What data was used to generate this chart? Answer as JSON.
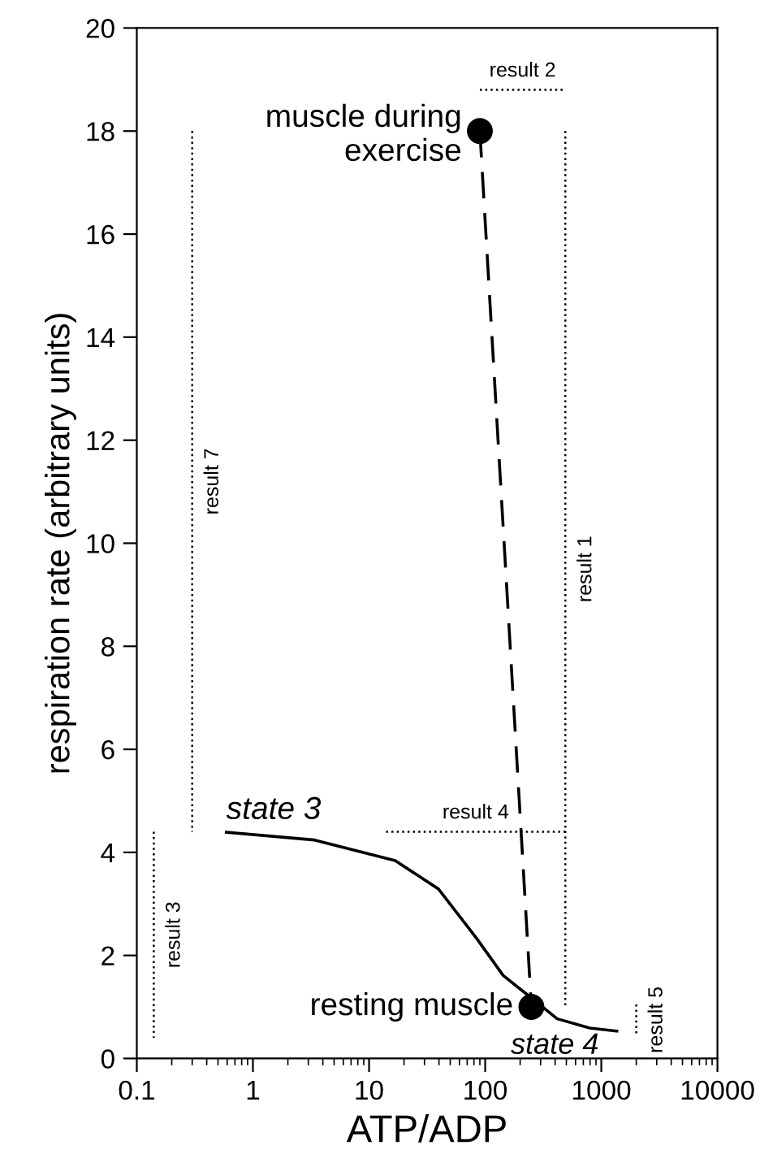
{
  "chart_data": {
    "type": "line",
    "xlabel": "ATP/ADP",
    "ylabel": "respiration rate (arbitrary units)",
    "log": "x",
    "xlim": [
      0.1,
      10000
    ],
    "ylim": [
      0,
      20
    ],
    "xticks": [
      {
        "value": 0.1,
        "label": "0.1"
      },
      {
        "value": 1,
        "label": "1"
      },
      {
        "value": 10,
        "label": "10"
      },
      {
        "value": 100,
        "label": "100"
      },
      {
        "value": 1000,
        "label": "1000"
      },
      {
        "value": 10000,
        "label": "10000"
      }
    ],
    "yticks": [
      0,
      2,
      4,
      6,
      8,
      10,
      12,
      14,
      16,
      18,
      20
    ],
    "grid": false,
    "legend": false,
    "series": [
      {
        "color": "#000000",
        "line_style": "solid",
        "x": [
          0.59,
          3.4,
          16.8,
          39.6,
          83.8,
          143,
          245,
          417,
          794,
          1360
        ],
        "values": [
          4.39,
          4.24,
          3.84,
          3.29,
          2.34,
          1.61,
          1.19,
          0.77,
          0.59,
          0.53
        ]
      },
      {
        "color": "#000000",
        "line_style": "dashed",
        "x": [
          90,
          250
        ],
        "values": [
          18,
          1
        ]
      },
      {
        "type": "scatter",
        "color": "#000000",
        "marker": "circle",
        "x": [
          90,
          250
        ],
        "values": [
          18,
          1
        ]
      },
      {
        "type": "line",
        "name": "result 1",
        "color": "#000000",
        "line_style": "dotted",
        "x": [
          490,
          490
        ],
        "values": [
          18,
          1
        ]
      },
      {
        "type": "line",
        "name": "result 2",
        "color": "#000000",
        "line_style": "dotted",
        "x": [
          90,
          490
        ],
        "values": [
          18.8,
          18.8
        ]
      },
      {
        "type": "line",
        "name": "result 3",
        "color": "#000000",
        "line_style": "dotted",
        "x": [
          0.14,
          0.14
        ],
        "values": [
          4.4,
          0.4
        ]
      },
      {
        "type": "line",
        "name": "result 4",
        "color": "#000000",
        "line_style": "dotted",
        "x": [
          14,
          490
        ],
        "values": [
          4.4,
          4.4
        ]
      },
      {
        "type": "line",
        "name": "result 5",
        "color": "#000000",
        "line_style": "dotted",
        "x": [
          2000,
          2000
        ],
        "values": [
          1.05,
          0.45
        ]
      },
      {
        "type": "line",
        "name": "result 7",
        "color": "#000000",
        "line_style": "dotted",
        "x": [
          0.3,
          0.3
        ],
        "values": [
          18,
          4.4
        ]
      }
    ],
    "annotations": [
      {
        "text": "muscle during\nexercise",
        "x": 90,
        "y": 18
      },
      {
        "text": "resting muscle",
        "x": 250,
        "y": 1
      },
      {
        "text": "state 3",
        "x": 0.59,
        "y": 4.39
      },
      {
        "text": "state 4",
        "x": 1360,
        "y": 0.53
      }
    ]
  }
}
